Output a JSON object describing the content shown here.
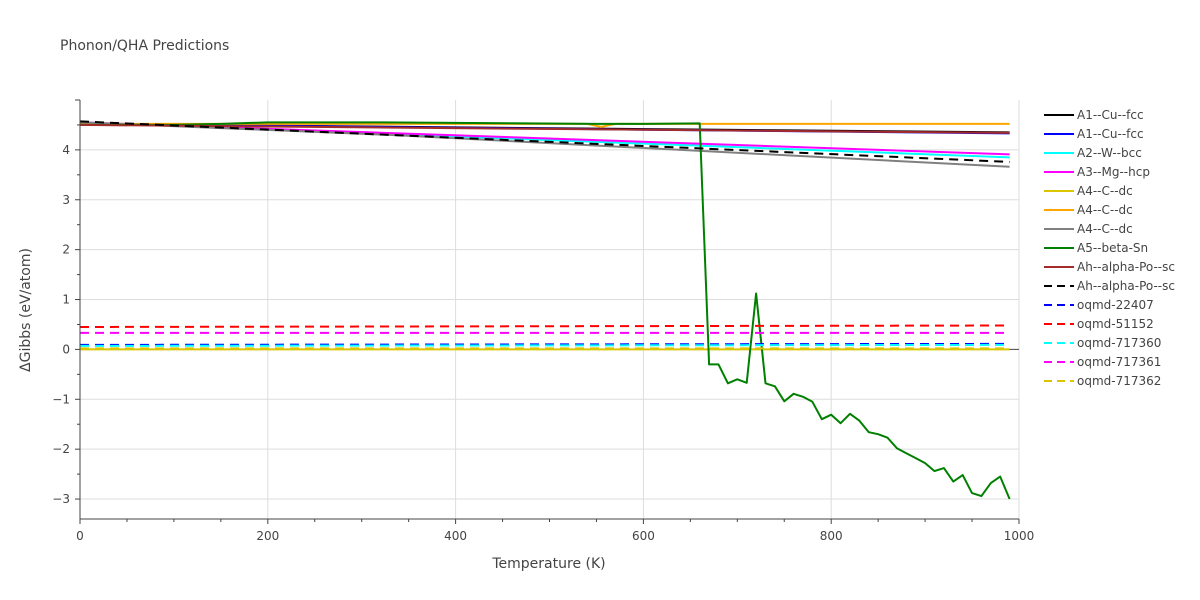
{
  "chart_data": {
    "type": "line",
    "title": "Phonon/QHA Predictions",
    "xlabel": "Temperature (K)",
    "ylabel": "ΔGibbs (eV/atom)",
    "xlim": [
      0,
      1000
    ],
    "ylim": [
      -3.4,
      5
    ],
    "xticks": [
      0,
      200,
      400,
      600,
      800,
      1000
    ],
    "xtick_labels": [
      "0",
      "200",
      "400",
      "600",
      "800",
      "1000"
    ],
    "yticks": [
      -3,
      -2,
      -1,
      0,
      1,
      2,
      3,
      4
    ],
    "ytick_labels": [
      "−3",
      "−2",
      "−1",
      "0",
      "1",
      "2",
      "3",
      "4"
    ],
    "grid": true,
    "legend_position": "right",
    "series": [
      {
        "name": "A1--Cu--fcc",
        "color": "#000000",
        "dash": "solid",
        "x": [
          0,
          990
        ],
        "y": [
          4.52,
          4.35
        ]
      },
      {
        "name": "A1--Cu--fcc",
        "color": "#0000ff",
        "dash": "solid",
        "x": [
          0,
          990
        ],
        "y": [
          4.52,
          4.33
        ]
      },
      {
        "name": "A2--W--bcc",
        "color": "#00ffff",
        "dash": "solid",
        "x": [
          0,
          990
        ],
        "y": [
          4.55,
          3.85
        ]
      },
      {
        "name": "A3--Mg--hcp",
        "color": "#ff00ff",
        "dash": "solid",
        "x": [
          0,
          990
        ],
        "y": [
          4.55,
          3.91
        ]
      },
      {
        "name": "A4--C--dc",
        "color": "#dbc400",
        "dash": "solid",
        "x": [
          0,
          990
        ],
        "y": [
          0.0,
          0.0
        ]
      },
      {
        "name": "A4--C--dc",
        "color": "#ffa500",
        "dash": "solid",
        "x": [
          0,
          540,
          555,
          570,
          990
        ],
        "y": [
          4.52,
          4.52,
          4.46,
          4.52,
          4.52
        ]
      },
      {
        "name": "A4--C--dc",
        "color": "#808080",
        "dash": "solid",
        "x": [
          0,
          330,
          990
        ],
        "y": [
          4.55,
          4.3,
          3.66
        ]
      },
      {
        "name": "A5--beta-Sn",
        "color": "#008000",
        "dash": "solid",
        "x": [
          0,
          100,
          150,
          200,
          320,
          550,
          562,
          600,
          660,
          670,
          680,
          690,
          700,
          710,
          720,
          730,
          740,
          750,
          760,
          770,
          780,
          790,
          800,
          810,
          820,
          830,
          840,
          850,
          860,
          870,
          880,
          890,
          900,
          910,
          920,
          930,
          940,
          950,
          960,
          970,
          980,
          990
        ],
        "y": [
          4.5,
          4.5,
          4.52,
          4.55,
          4.55,
          4.52,
          4.52,
          4.52,
          4.53,
          -0.3,
          -0.3,
          -0.68,
          -0.6,
          -0.67,
          1.12,
          -0.68,
          -0.74,
          -1.04,
          -0.89,
          -0.95,
          -1.05,
          -1.4,
          -1.31,
          -1.48,
          -1.29,
          -1.43,
          -1.66,
          -1.7,
          -1.77,
          -1.98,
          -2.08,
          -2.18,
          -2.28,
          -2.44,
          -2.38,
          -2.65,
          -2.52,
          -2.88,
          -2.94,
          -2.68,
          -2.55,
          -3.0
        ]
      },
      {
        "name": "Ah--alpha-Po--sc",
        "color": "#a52a2a",
        "dash": "solid",
        "x": [
          0,
          990
        ],
        "y": [
          4.5,
          4.34
        ]
      },
      {
        "name": "Ah--alpha-Po--sc",
        "color": "#000000",
        "dash": "dash",
        "x": [
          0,
          990
        ],
        "y": [
          4.57,
          3.76
        ]
      },
      {
        "name": "oqmd-22407",
        "color": "#0000ff",
        "dash": "dash",
        "x": [
          0,
          990
        ],
        "y": [
          0.09,
          0.11
        ]
      },
      {
        "name": "oqmd-51152",
        "color": "#ff0000",
        "dash": "dash",
        "x": [
          0,
          990
        ],
        "y": [
          0.45,
          0.48
        ]
      },
      {
        "name": "oqmd-717360",
        "color": "#00ffff",
        "dash": "dash",
        "x": [
          0,
          990
        ],
        "y": [
          0.07,
          0.09
        ]
      },
      {
        "name": "oqmd-717361",
        "color": "#ff00ff",
        "dash": "dash",
        "x": [
          0,
          990
        ],
        "y": [
          0.33,
          0.33
        ]
      },
      {
        "name": "oqmd-717362",
        "color": "#dbc400",
        "dash": "dash",
        "x": [
          0,
          990
        ],
        "y": [
          0.02,
          0.02
        ]
      }
    ]
  }
}
